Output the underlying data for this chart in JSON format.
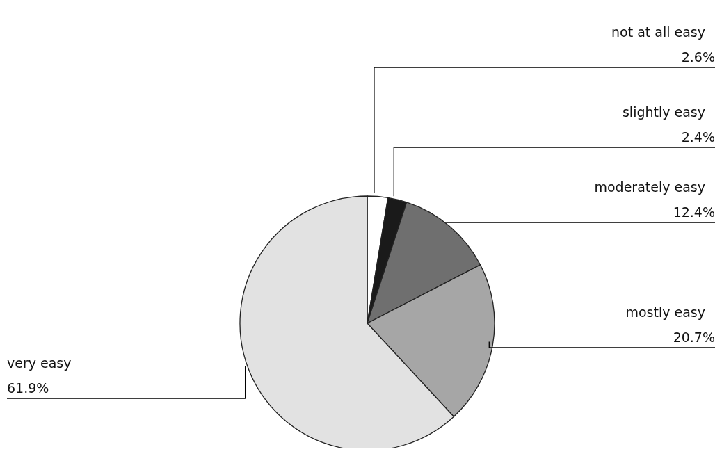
{
  "chart_data": {
    "type": "pie",
    "categories": [
      "not at all easy",
      "slightly easy",
      "moderately easy",
      "mostly easy",
      "very easy"
    ],
    "values": [
      2.6,
      2.4,
      12.4,
      20.7,
      61.9
    ],
    "value_labels": [
      "2.6%",
      "2.4%",
      "12.4%",
      "20.7%",
      "61.9%"
    ],
    "colors": [
      "#ffffff",
      "#1a1a1a",
      "#6f6f6f",
      "#a6a6a6",
      "#e2e2e2"
    ]
  }
}
